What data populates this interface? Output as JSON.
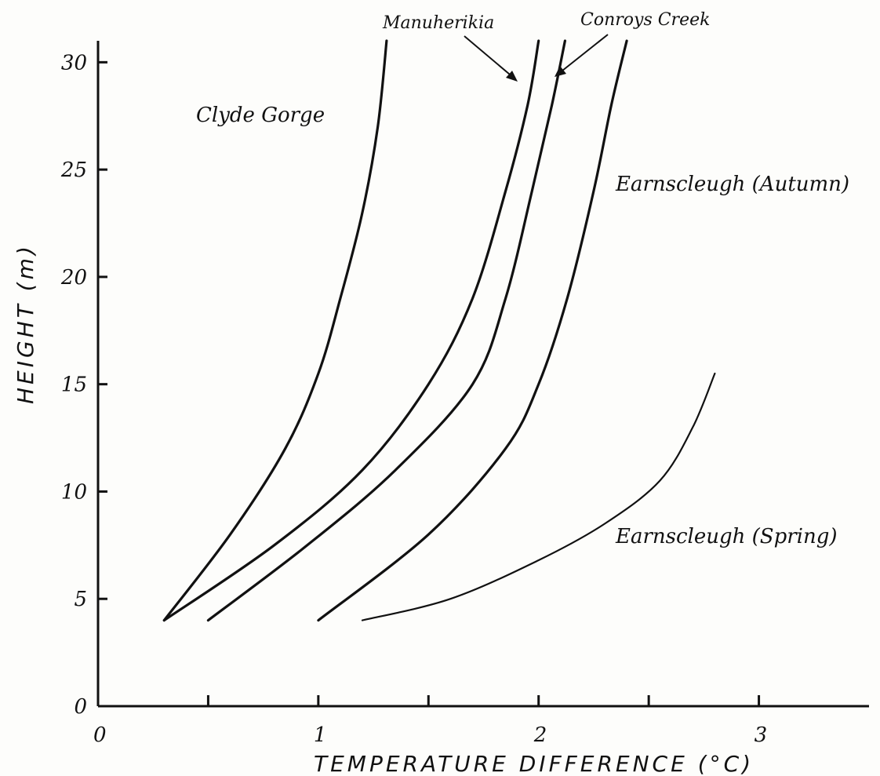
{
  "chart_data": {
    "type": "line",
    "title": "",
    "xlabel": "TEMPERATURE DIFFERENCE (°C)",
    "ylabel": "HEIGHT (m)",
    "xlim": [
      0,
      3.5
    ],
    "ylim": [
      0,
      31
    ],
    "x_ticks": [
      "0",
      "1",
      "2",
      "3"
    ],
    "y_ticks": [
      "0",
      "5",
      "10",
      "15",
      "20",
      "25",
      "30"
    ],
    "grid": false,
    "series": [
      {
        "name": "Clyde Gorge",
        "thin": false,
        "points": [
          [
            0.3,
            4
          ],
          [
            0.6,
            8
          ],
          [
            0.85,
            12
          ],
          [
            1.0,
            15.5
          ],
          [
            1.1,
            19
          ],
          [
            1.2,
            23
          ],
          [
            1.27,
            27
          ],
          [
            1.31,
            31
          ]
        ]
      },
      {
        "name": "Manuherikia",
        "thin": false,
        "points": [
          [
            0.3,
            4
          ],
          [
            0.8,
            7.5
          ],
          [
            1.2,
            11
          ],
          [
            1.5,
            15
          ],
          [
            1.7,
            19
          ],
          [
            1.85,
            24
          ],
          [
            1.95,
            28
          ],
          [
            2.0,
            31
          ]
        ]
      },
      {
        "name": "Conroys Creek",
        "thin": false,
        "points": [
          [
            0.5,
            4
          ],
          [
            0.95,
            7.5
          ],
          [
            1.35,
            11
          ],
          [
            1.7,
            15
          ],
          [
            1.85,
            19
          ],
          [
            1.97,
            24
          ],
          [
            2.06,
            28
          ],
          [
            2.12,
            31
          ]
        ]
      },
      {
        "name": "Earnscleugh (Autumn)",
        "thin": false,
        "points": [
          [
            1.0,
            4
          ],
          [
            1.5,
            8
          ],
          [
            1.85,
            12
          ],
          [
            2.0,
            15
          ],
          [
            2.13,
            19
          ],
          [
            2.25,
            24
          ],
          [
            2.33,
            28
          ],
          [
            2.4,
            31
          ]
        ]
      },
      {
        "name": "Earnscleugh (Spring)",
        "thin": true,
        "points": [
          [
            1.2,
            4
          ],
          [
            1.6,
            5
          ],
          [
            2.0,
            6.8
          ],
          [
            2.3,
            8.5
          ],
          [
            2.55,
            10.5
          ],
          [
            2.7,
            13
          ],
          [
            2.8,
            15.5
          ]
        ]
      }
    ],
    "annotations": {
      "clyde": "Clyde Gorge",
      "manuherikia": "Manuherikia",
      "conroys": "Conroys Creek",
      "earns_autumn": "Earnscleugh (Autumn)",
      "earns_spring": "Earnscleugh (Spring)"
    }
  }
}
